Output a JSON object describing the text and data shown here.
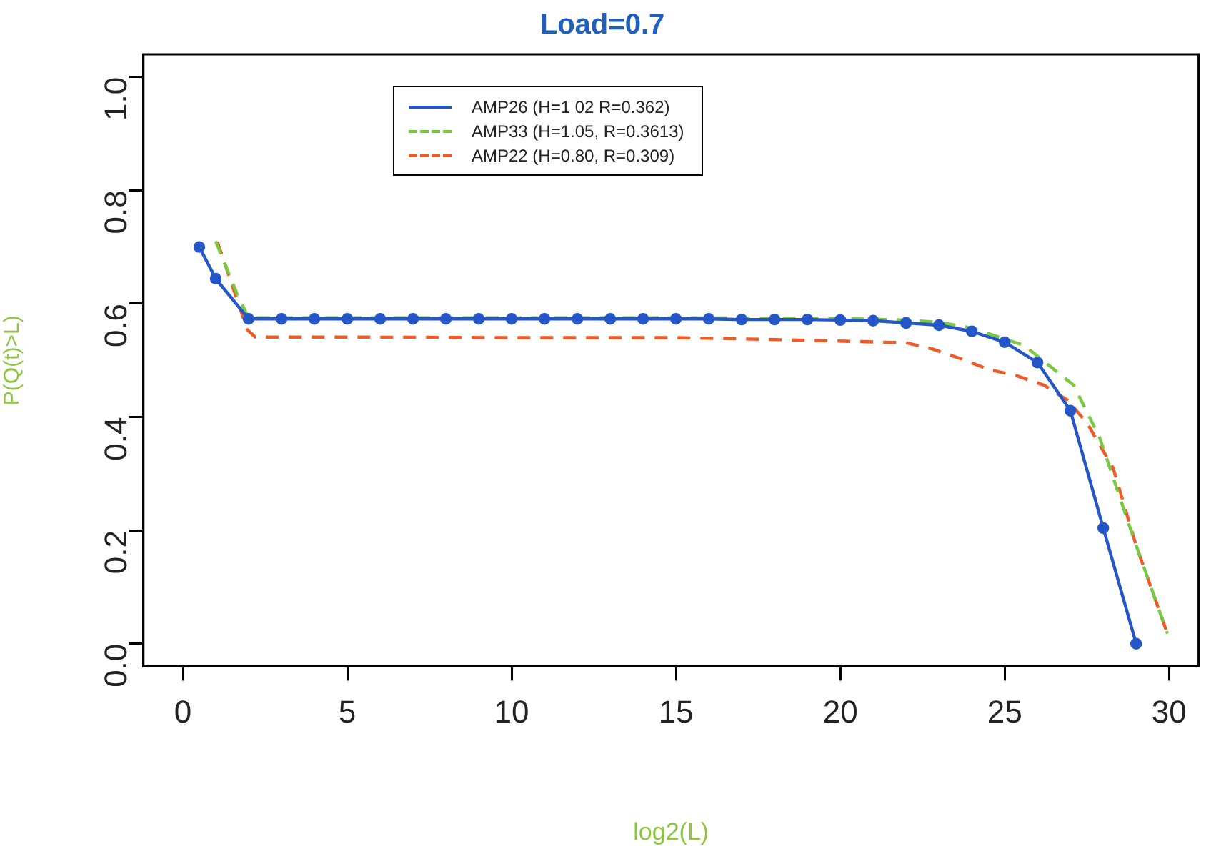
{
  "chart_data": {
    "type": "line",
    "title": "Load=0.7",
    "xlabel": "log2(L)",
    "ylabel": "P(Q(t)>L)",
    "xlim": [
      -1.2,
      30.9
    ],
    "ylim": [
      -0.04,
      1.04
    ],
    "xticks": [
      0,
      5,
      10,
      15,
      20,
      25,
      30
    ],
    "yticks": [
      {
        "value": 0,
        "label": "0.0"
      },
      {
        "value": 0.2,
        "label": "0.2"
      },
      {
        "value": 0.4,
        "label": "0.4"
      },
      {
        "value": 0.6,
        "label": "0.6"
      },
      {
        "value": 0.8,
        "label": "0.8"
      },
      {
        "value": 1,
        "label": "1.0"
      }
    ],
    "grid": false,
    "legend": "top left",
    "series": [
      {
        "name": "AMP26 (H=1 02 R=0.362)",
        "color": "#2456c8",
        "marker": "circle",
        "line_style": "solid",
        "x": [
          0.5,
          1,
          2,
          3,
          4,
          5,
          6,
          7,
          8,
          9,
          10,
          11,
          12,
          13,
          14,
          15,
          16,
          17,
          18,
          19,
          20,
          21,
          22,
          23,
          24,
          25,
          26,
          27,
          28,
          29
        ],
        "values": [
          0.7,
          0.644,
          0.573,
          0.573,
          0.573,
          0.573,
          0.573,
          0.573,
          0.573,
          0.573,
          0.573,
          0.573,
          0.573,
          0.573,
          0.573,
          0.573,
          0.573,
          0.572,
          0.572,
          0.572,
          0.571,
          0.57,
          0.566,
          0.562,
          0.551,
          0.532,
          0.496,
          0.411,
          0.204,
          0.0
        ]
      },
      {
        "name": "AMP33 (H=1.05, R=0.3613)",
        "color": "#7ac943",
        "marker": "none",
        "line_style": "dashed",
        "x": [
          1,
          1.7,
          2,
          5,
          10,
          15,
          20,
          22,
          23,
          24,
          25.6,
          27.1,
          27.9,
          28.9,
          29.95
        ],
        "values": [
          0.71,
          0.61,
          0.575,
          0.575,
          0.575,
          0.575,
          0.574,
          0.571,
          0.567,
          0.557,
          0.526,
          0.456,
          0.362,
          0.19,
          0.018
        ]
      },
      {
        "name": "AMP22 (H=0.80, R=0.309)",
        "color": "#f05a28",
        "marker": "none",
        "line_style": "dashed",
        "x": [
          1.05,
          1.96,
          2.2,
          5,
          10,
          15,
          18.5,
          22,
          22.8,
          23.8,
          24.5,
          25.4,
          26.2,
          26.9,
          27.5,
          28.3,
          29,
          29.95
        ],
        "values": [
          0.709,
          0.554,
          0.541,
          0.541,
          0.54,
          0.54,
          0.536,
          0.531,
          0.52,
          0.5,
          0.484,
          0.472,
          0.456,
          0.43,
          0.39,
          0.31,
          0.173,
          0.018
        ]
      }
    ]
  }
}
